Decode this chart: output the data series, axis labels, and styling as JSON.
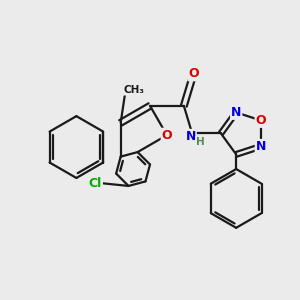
{
  "background_color": "#ebebeb",
  "bond_color": "#1a1a1a",
  "bond_width": 1.6,
  "atom_colors": {
    "C": "#1a1a1a",
    "H": "#5a8a5a",
    "N": "#0000dd",
    "O": "#dd0000",
    "Cl": "#00aa00"
  },
  "font_size": 9,
  "font_size_h": 7.5
}
